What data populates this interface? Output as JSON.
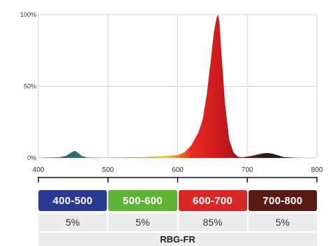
{
  "chart_data": {
    "type": "area",
    "title": "",
    "xlabel": "",
    "ylabel": "",
    "xlim": [
      400,
      800
    ],
    "ylim": [
      0,
      100
    ],
    "x_ticks": [
      "400",
      "500",
      "600",
      "700",
      "800"
    ],
    "y_ticks": [
      "0%",
      "50%",
      "100%"
    ],
    "grid": true,
    "x": [
      400,
      430,
      440,
      448,
      452,
      456,
      462,
      470,
      490,
      520,
      550,
      570,
      590,
      600,
      610,
      620,
      630,
      636,
      642,
      648,
      652,
      656,
      658,
      660,
      663,
      668,
      674,
      680,
      686,
      692,
      700,
      710,
      720,
      728,
      736,
      744,
      752,
      770,
      800
    ],
    "values": [
      0,
      0.4,
      1.5,
      4,
      5,
      4,
      1.5,
      0.3,
      0.1,
      0.3,
      0.6,
      1.1,
      1.6,
      2,
      4,
      9,
      18,
      27,
      45,
      70,
      88,
      98,
      100,
      95,
      72,
      38,
      13,
      4,
      1,
      0.4,
      1,
      1.8,
      3,
      3.5,
      3,
      1.8,
      0.6,
      0.1,
      0
    ],
    "color_stops": [
      "#233b8f",
      "#2e8d6a",
      "#8cc63f",
      "#f2c12e",
      "#e82b1e",
      "#c8181e",
      "#7a1515",
      "#2a1a16"
    ]
  },
  "bands": [
    {
      "label": "400-500",
      "color": "#2a3a94",
      "percent": "5%"
    },
    {
      "label": "500-600",
      "color": "#5fb436",
      "percent": "5%"
    },
    {
      "label": "600-700",
      "color": "#d92926",
      "percent": "85%"
    },
    {
      "label": "700-800",
      "color": "#5a1b16",
      "percent": "5%"
    }
  ],
  "footer": "RBG-FR"
}
